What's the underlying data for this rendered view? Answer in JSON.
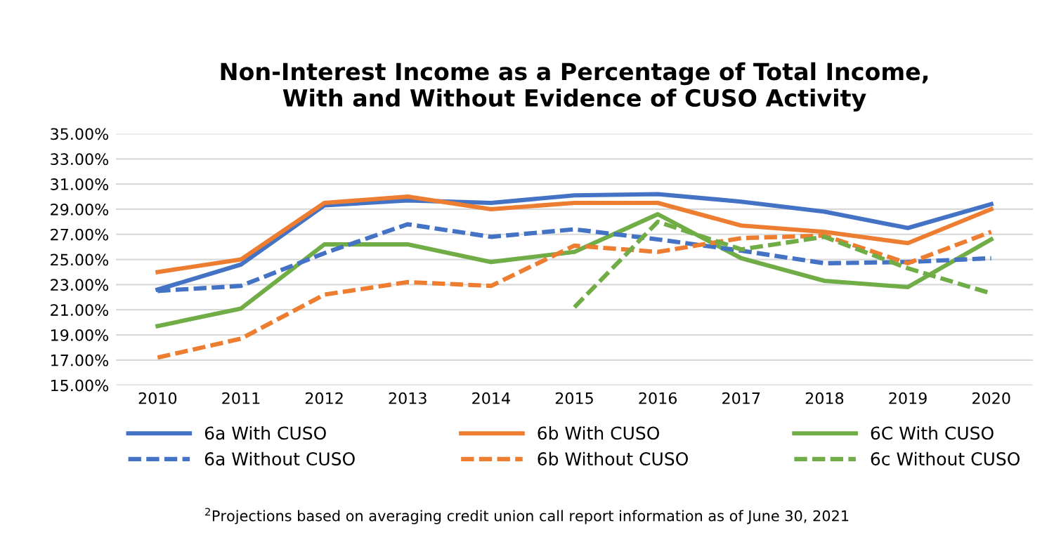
{
  "chart_data": {
    "type": "line",
    "title": "Non-Interest Income as a Percentage of Total Income,\nWith and Without Evidence of CUSO Activity",
    "categories": [
      "2010",
      "2011",
      "2012",
      "2013",
      "2014",
      "2015",
      "2016",
      "2017",
      "2018",
      "2019",
      "2020"
    ],
    "series": [
      {
        "name": "6a With CUSO",
        "color": "#4472c4",
        "line_style": "solid",
        "values": [
          22.6,
          24.6,
          29.3,
          29.7,
          29.5,
          30.1,
          30.2,
          29.6,
          28.8,
          27.5,
          29.4
        ]
      },
      {
        "name": "6b With CUSO",
        "color": "#ed7d31",
        "line_style": "solid",
        "values": [
          24.0,
          25.0,
          29.5,
          30.0,
          29.0,
          29.5,
          29.5,
          27.7,
          27.2,
          26.3,
          29.0
        ]
      },
      {
        "name": "6C With CUSO",
        "color": "#70ad47",
        "line_style": "solid",
        "values": [
          19.7,
          21.1,
          26.2,
          26.2,
          24.8,
          25.6,
          28.6,
          25.1,
          23.3,
          22.8,
          26.6
        ]
      },
      {
        "name": "6a Without CUSO",
        "color": "#4472c4",
        "line_style": "dashed",
        "values": [
          22.5,
          22.9,
          25.5,
          27.8,
          26.8,
          27.4,
          26.6,
          25.7,
          24.7,
          24.8,
          25.1
        ]
      },
      {
        "name": "6b Without CUSO",
        "color": "#ed7d31",
        "line_style": "dashed",
        "values": [
          17.2,
          18.7,
          22.2,
          23.2,
          22.9,
          26.1,
          25.6,
          26.7,
          26.9,
          24.7,
          27.2
        ]
      },
      {
        "name": "6c Without CUSO",
        "color": "#70ad47",
        "line_style": "dashed",
        "values": [
          null,
          null,
          null,
          null,
          null,
          21.2,
          28.0,
          25.8,
          26.8,
          24.3,
          22.3
        ]
      }
    ],
    "ylim": [
      15,
      35
    ],
    "yticks": [
      {
        "value": 15,
        "label": "15.00%"
      },
      {
        "value": 17,
        "label": "17.00%"
      },
      {
        "value": 19,
        "label": "19.00%"
      },
      {
        "value": 21,
        "label": "21.00%"
      },
      {
        "value": 23,
        "label": "23.00%"
      },
      {
        "value": 25,
        "label": "25.00%"
      },
      {
        "value": 27,
        "label": "27.00%"
      },
      {
        "value": 29,
        "label": "29.00%"
      },
      {
        "value": 31,
        "label": "31.00%"
      },
      {
        "value": 33,
        "label": "33.00%"
      },
      {
        "value": 35,
        "label": "35.00%"
      }
    ],
    "grid": "y",
    "legend": "bottom",
    "marker": "none",
    "annotations": [
      "$^{2}$Projections based on averaging credit union call report information as of June 30, 2021"
    ]
  }
}
